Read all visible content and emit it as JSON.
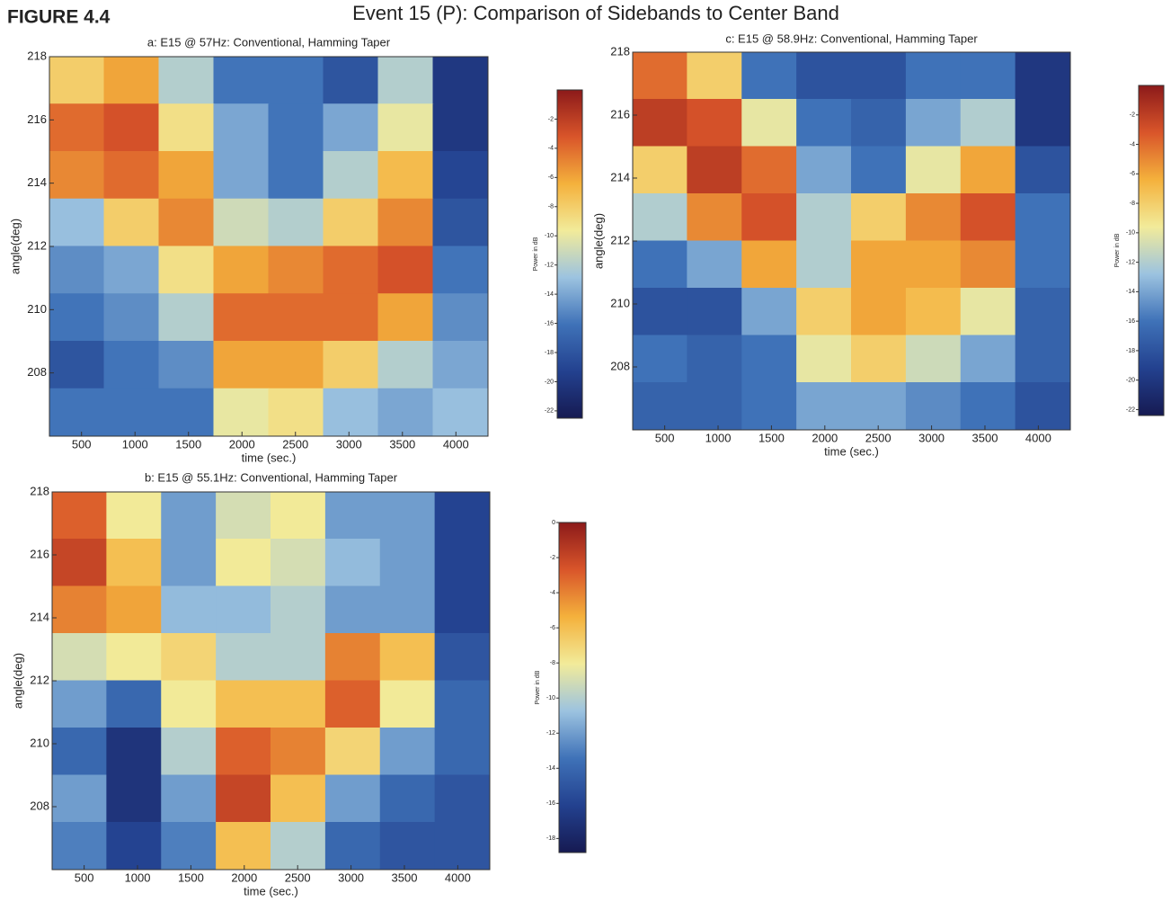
{
  "figure_label": "FIGURE 4.4",
  "title": "Event 15 (P): Comparison of Sidebands to Center Band",
  "chart_data": [
    {
      "type": "heatmap",
      "title": "a: E15 @ 57Hz: Conventional, Hamming Taper",
      "xlabel": "time (sec.)",
      "ylabel": "angle(deg)",
      "xlim": [
        200,
        4300
      ],
      "xticks": [
        500,
        1000,
        1500,
        2000,
        2500,
        3000,
        3500,
        4000
      ],
      "ylim": [
        206,
        218
      ],
      "yticks": [
        208,
        210,
        212,
        214,
        216,
        218
      ],
      "x": [
        456.25,
        968.75,
        1481.25,
        1993.75,
        2506.25,
        3018.75,
        3531.25,
        4043.75
      ],
      "y": [
        217.25,
        215.75,
        214.25,
        212.75,
        211.25,
        209.75,
        208.25,
        206.75
      ],
      "values": [
        [
          -8,
          -6,
          -12,
          -16,
          -16,
          -18,
          -12,
          -20
        ],
        [
          -4,
          -3,
          -9,
          -14,
          -16,
          -14,
          -10,
          -20
        ],
        [
          -5,
          -4,
          -6,
          -14,
          -16,
          -12,
          -7,
          -19
        ],
        [
          -13,
          -8,
          -5,
          -11,
          -12,
          -8,
          -5,
          -18
        ],
        [
          -15,
          -14,
          -9,
          -6,
          -5,
          -4,
          -3,
          -16
        ],
        [
          -16,
          -15,
          -12,
          -4,
          -4,
          -4,
          -6,
          -15
        ],
        [
          -18,
          -16,
          -15,
          -6,
          -6,
          -8,
          -12,
          -14
        ],
        [
          -16,
          -16,
          -16,
          -10,
          -9,
          -13,
          -14,
          -13
        ]
      ],
      "colorbar_label": "Power in dB",
      "clim": [
        -22.5,
        0
      ],
      "colorbar_ticks": [
        -2,
        -4,
        -6,
        -8,
        -10,
        -12,
        -14,
        -16,
        -18,
        -20,
        -22
      ],
      "colormap": [
        "#161a52",
        "#23418f",
        "#3f72b8",
        "#9cc3e0",
        "#f2eb9a",
        "#f4b13c",
        "#d9552a",
        "#8c1a1a"
      ]
    },
    {
      "type": "heatmap",
      "title": "b: E15 @ 55.1Hz: Conventional, Hamming Taper",
      "xlabel": "time (sec.)",
      "ylabel": "angle(deg)",
      "xlim": [
        200,
        4300
      ],
      "xticks": [
        500,
        1000,
        1500,
        2000,
        2500,
        3000,
        3500,
        4000
      ],
      "ylim": [
        206,
        218
      ],
      "yticks": [
        208,
        210,
        212,
        214,
        216,
        218
      ],
      "x": [
        456.25,
        968.75,
        1481.25,
        1993.75,
        2506.25,
        3018.75,
        3531.25,
        4043.75
      ],
      "y": [
        217.25,
        215.75,
        214.25,
        212.75,
        211.25,
        209.75,
        208.25,
        206.75
      ],
      "values": [
        [
          -3,
          -8,
          -12,
          -9,
          -8,
          -12,
          -12,
          -16
        ],
        [
          -2,
          -6,
          -12,
          -8,
          -9,
          -11,
          -12,
          -16
        ],
        [
          -4,
          -5,
          -11,
          -11,
          -10,
          -12,
          -12,
          -16
        ],
        [
          -9,
          -8,
          -7,
          -10,
          -10,
          -4,
          -6,
          -15
        ],
        [
          -12,
          -14,
          -8,
          -6,
          -6,
          -3,
          -8,
          -14
        ],
        [
          -14,
          -17,
          -10,
          -3,
          -4,
          -7,
          -12,
          -14
        ],
        [
          -12,
          -17,
          -12,
          -2,
          -6,
          -12,
          -14,
          -15
        ],
        [
          -13,
          -16,
          -13,
          -6,
          -10,
          -14,
          -15,
          -15
        ]
      ],
      "colorbar_label": "Power in dB",
      "clim": [
        -18.8,
        0
      ],
      "colorbar_ticks": [
        0,
        -2,
        -4,
        -6,
        -8,
        -10,
        -12,
        -14,
        -16,
        -18
      ],
      "colormap": [
        "#161a52",
        "#23418f",
        "#3f72b8",
        "#9cc3e0",
        "#f2eb9a",
        "#f4b13c",
        "#d9552a",
        "#8c1a1a"
      ]
    },
    {
      "type": "heatmap",
      "title": "c: E15 @ 58.9Hz: Conventional, Hamming Taper",
      "xlabel": "time (sec.)",
      "ylabel": "angle(deg)",
      "xlim": [
        200,
        4300
      ],
      "xticks": [
        500,
        1000,
        1500,
        2000,
        2500,
        3000,
        3500,
        4000
      ],
      "ylim": [
        206,
        218
      ],
      "yticks": [
        208,
        210,
        212,
        214,
        216,
        218
      ],
      "x": [
        456.25,
        968.75,
        1481.25,
        1993.75,
        2506.25,
        3018.75,
        3531.25,
        4043.75
      ],
      "y": [
        217.25,
        215.75,
        214.25,
        212.75,
        211.25,
        209.75,
        208.25,
        206.75
      ],
      "values": [
        [
          -4,
          -8,
          -16,
          -18,
          -18,
          -16,
          -16,
          -20
        ],
        [
          -2,
          -3,
          -10,
          -16,
          -17,
          -14,
          -12,
          -20
        ],
        [
          -8,
          -2,
          -4,
          -14,
          -16,
          -10,
          -6,
          -18
        ],
        [
          -12,
          -5,
          -3,
          -12,
          -8,
          -5,
          -3,
          -16
        ],
        [
          -16,
          -14,
          -6,
          -12,
          -6,
          -6,
          -5,
          -16
        ],
        [
          -18,
          -18,
          -14,
          -8,
          -6,
          -7,
          -10,
          -17
        ],
        [
          -16,
          -17,
          -16,
          -10,
          -8,
          -11,
          -14,
          -17
        ],
        [
          -17,
          -17,
          -16,
          -14,
          -14,
          -15,
          -16,
          -18
        ]
      ],
      "colorbar_label": "Power in dB",
      "clim": [
        -22.4,
        0
      ],
      "colorbar_ticks": [
        -2,
        -4,
        -6,
        -8,
        -10,
        -12,
        -14,
        -16,
        -18,
        -20,
        -22
      ],
      "colormap": [
        "#161a52",
        "#23418f",
        "#3f72b8",
        "#9cc3e0",
        "#f2eb9a",
        "#f4b13c",
        "#d9552a",
        "#8c1a1a"
      ]
    }
  ]
}
